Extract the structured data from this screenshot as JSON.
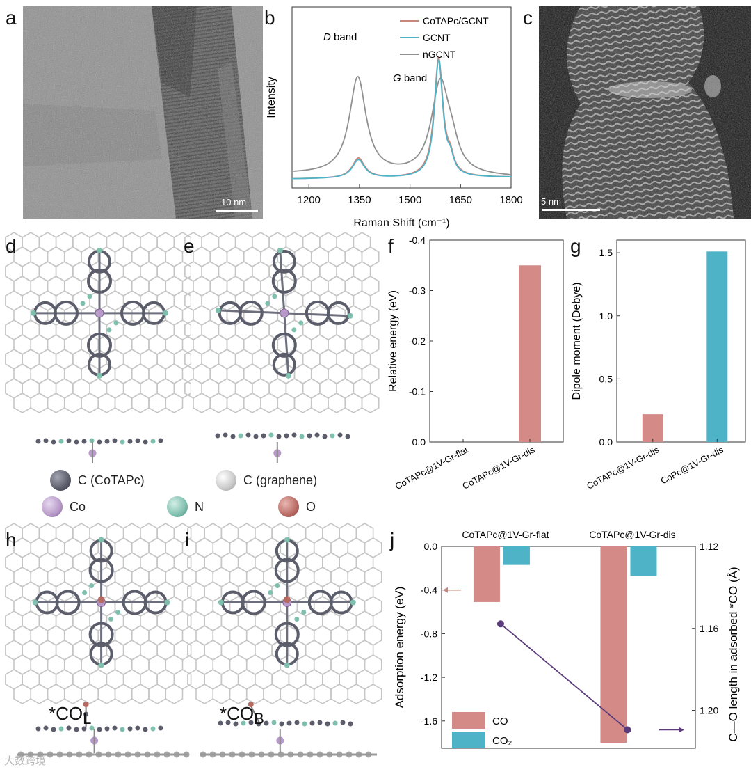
{
  "panel_labels": {
    "a": "a",
    "b": "b",
    "c": "c",
    "d": "d",
    "e": "e",
    "f": "f",
    "g": "g",
    "h": "h",
    "i": "i",
    "j": "j"
  },
  "panel_a": {
    "scale_bar": "10 nm"
  },
  "panel_c": {
    "scale_bar": "5 nm"
  },
  "atom_legend": {
    "c_cotapc": "C (CoTAPc)",
    "c_graphene": "C (graphene)",
    "co": "Co",
    "n": "N",
    "o": "O",
    "colors": {
      "c_cotapc": "#5b5d6b",
      "c_graphene": "#c9c9c9",
      "co": "#b79ac8",
      "n": "#7fbfae",
      "o": "#b86b63"
    }
  },
  "panel_h": {
    "label_main": "*CO",
    "label_sub": "L"
  },
  "panel_i": {
    "label_main": "*CO",
    "label_sub": "B"
  },
  "watermark": "大数跨境",
  "colors": {
    "pink": "#d48a87",
    "teal": "#4fb3c7",
    "gray": "#8f8f8f",
    "purple": "#5b3c7a"
  },
  "chart_data": [
    {
      "id": "b",
      "type": "line",
      "xlabel": "Raman Shift (cm⁻¹)",
      "ylabel": "Intensity",
      "xlim": [
        1150,
        1800
      ],
      "xticks": [
        1200,
        1350,
        1500,
        1650,
        1800
      ],
      "annotations": [
        {
          "text_italic": "D",
          "text": " band"
        },
        {
          "text_italic": "G",
          "text": " band"
        }
      ],
      "series": [
        {
          "name": "CoTAPc/GCNT",
          "color": "#c9867e",
          "peaks": [
            {
              "center": 1347,
              "width": 22,
              "height": 0.12
            },
            {
              "center": 1585,
              "width": 16,
              "height": 0.71
            },
            {
              "center": 1620,
              "width": 12,
              "height": 0.08
            }
          ],
          "baseline": [
            0.02,
            0.03
          ]
        },
        {
          "name": "GCNT",
          "color": "#4fb3c7",
          "peaks": [
            {
              "center": 1347,
              "width": 22,
              "height": 0.11
            },
            {
              "center": 1585,
              "width": 15,
              "height": 0.7
            },
            {
              "center": 1620,
              "width": 12,
              "height": 0.08
            }
          ],
          "baseline": [
            0.02,
            0.03
          ]
        },
        {
          "name": "nGCNT",
          "color": "#909090",
          "peaks": [
            {
              "center": 1345,
              "width": 30,
              "height": 0.58
            },
            {
              "center": 1590,
              "width": 32,
              "height": 0.55
            },
            {
              "center": 1625,
              "width": 22,
              "height": 0.1
            }
          ],
          "baseline": [
            0.05,
            0.03
          ]
        }
      ]
    },
    {
      "id": "f",
      "type": "bar",
      "ylabel": "Relative energy (eV)",
      "categories": [
        "CoTAPc@1V-Gr-flat",
        "CoTAPc@1V-Gr-dis"
      ],
      "values": [
        0.0,
        -0.35
      ],
      "ylim": [
        0,
        -0.4
      ],
      "yticks": [
        "0.0",
        "-0.1",
        "-0.2",
        "-0.3",
        "-0.4"
      ],
      "ytick_values": [
        0,
        -0.1,
        -0.2,
        -0.3,
        -0.4
      ],
      "color": "#d48a87"
    },
    {
      "id": "g",
      "type": "bar",
      "ylabel": "Dipole moment (Debye)",
      "categories": [
        "CoTAPc@1V-Gr-dis",
        "CoPc@1V-Gr-dis"
      ],
      "values": [
        0.22,
        1.51
      ],
      "ylim": [
        0,
        1.6
      ],
      "yticks": [
        "0.0",
        "0.5",
        "1.0",
        "1.5"
      ],
      "ytick_values": [
        0,
        0.5,
        1.0,
        1.5
      ],
      "colors": [
        "#d48a87",
        "#4fb3c7"
      ]
    },
    {
      "id": "j",
      "type": "bar",
      "ylabel_left": "Adsorption energy (eV)",
      "ylabel_right": "C—O length in adsorbed *CO (Å)",
      "categories": [
        "CoTAPc@1V-Gr-flat",
        "CoTAPc@1V-Gr-dis"
      ],
      "series": [
        {
          "name": "CO",
          "color": "#d48a87",
          "values": [
            -0.51,
            -1.8
          ]
        },
        {
          "name": "CO₂",
          "color": "#4fb3c7",
          "values": [
            -0.17,
            -0.27
          ]
        }
      ],
      "left_ylim": [
        0.0,
        -1.85
      ],
      "left_yticks": [
        "0.0",
        "-0.4",
        "-0.8",
        "-1.2",
        "-1.6"
      ],
      "left_ytick_values": [
        0,
        -0.4,
        -0.8,
        -1.2,
        -1.6
      ],
      "right_ylim": [
        1.12,
        1.2185
      ],
      "right_yticks": [
        "1.12",
        "1.16",
        "1.20"
      ],
      "right_ytick_values": [
        1.12,
        1.16,
        1.2
      ],
      "line": {
        "name": "C–O length",
        "color": "#5b3c7a",
        "values": [
          1.1578,
          1.2095
        ]
      }
    }
  ]
}
